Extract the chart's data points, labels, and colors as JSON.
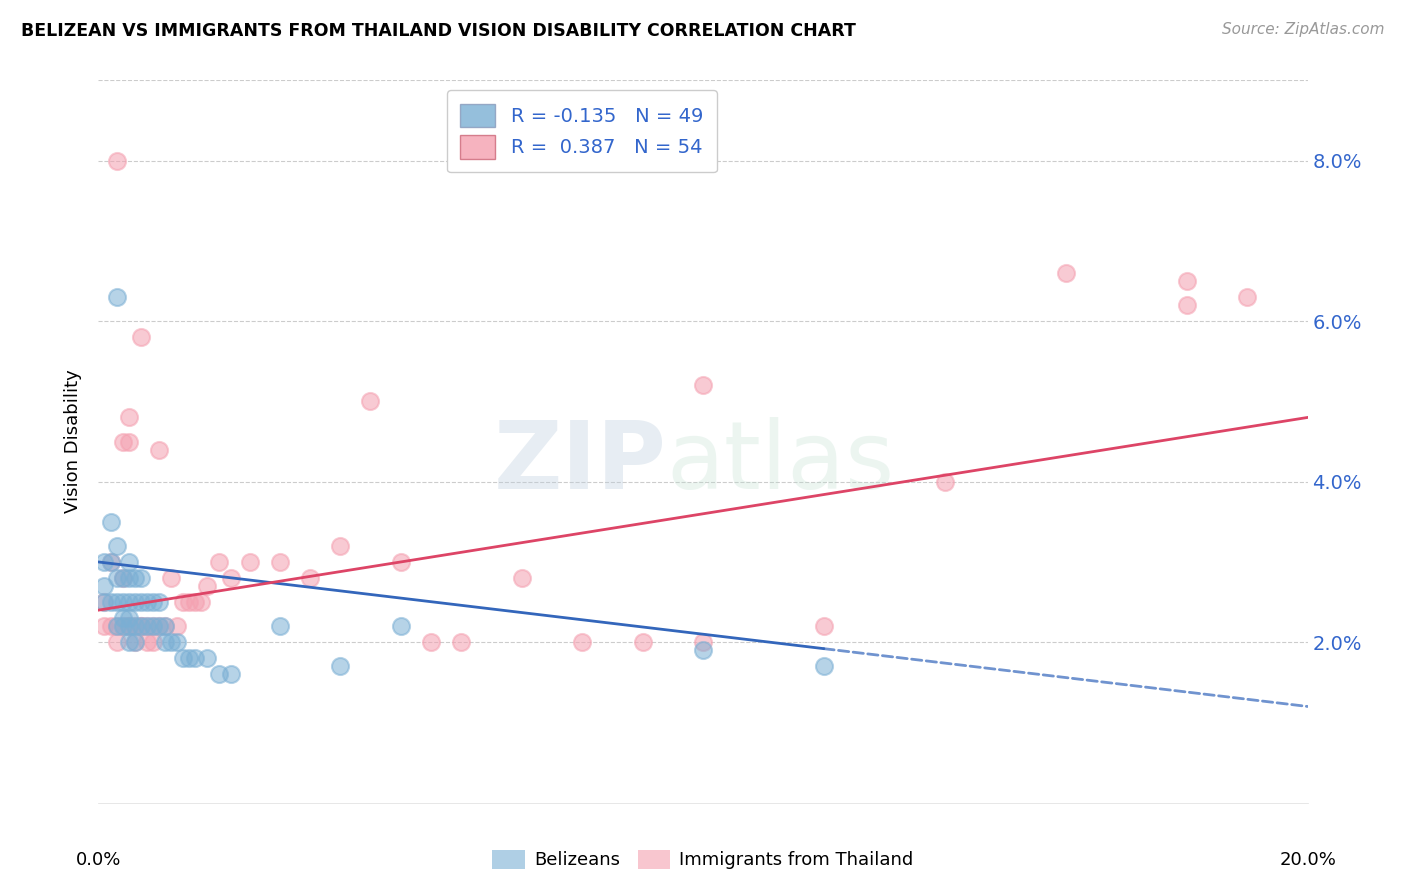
{
  "title": "BELIZEAN VS IMMIGRANTS FROM THAILAND VISION DISABILITY CORRELATION CHART",
  "source": "Source: ZipAtlas.com",
  "ylabel": "Vision Disability",
  "xlim": [
    0.0,
    0.2
  ],
  "ylim": [
    0.0,
    0.09
  ],
  "ytick_values": [
    0.02,
    0.04,
    0.06,
    0.08
  ],
  "ytick_labels": [
    "2.0%",
    "4.0%",
    "6.0%",
    "8.0%"
  ],
  "xtick_labels": [
    "0.0%",
    "20.0%"
  ],
  "belizean_color": "#7BAFD4",
  "thailand_color": "#F4A0B0",
  "trendline_belizean_color": "#3366BB",
  "trendline_thailand_color": "#DD4466",
  "belizean_r": -0.135,
  "belizean_n": 49,
  "thailand_r": 0.387,
  "thailand_n": 54,
  "belizean_x": [
    0.001,
    0.001,
    0.001,
    0.002,
    0.002,
    0.002,
    0.003,
    0.003,
    0.003,
    0.003,
    0.004,
    0.004,
    0.004,
    0.004,
    0.005,
    0.005,
    0.005,
    0.005,
    0.005,
    0.005,
    0.006,
    0.006,
    0.006,
    0.006,
    0.007,
    0.007,
    0.007,
    0.008,
    0.008,
    0.009,
    0.009,
    0.01,
    0.01,
    0.011,
    0.011,
    0.012,
    0.013,
    0.014,
    0.015,
    0.016,
    0.018,
    0.02,
    0.022,
    0.03,
    0.04,
    0.05,
    0.1,
    0.12,
    0.003
  ],
  "belizean_y": [
    0.03,
    0.027,
    0.025,
    0.035,
    0.03,
    0.025,
    0.032,
    0.028,
    0.025,
    0.022,
    0.028,
    0.025,
    0.023,
    0.022,
    0.03,
    0.028,
    0.025,
    0.023,
    0.022,
    0.02,
    0.028,
    0.025,
    0.022,
    0.02,
    0.028,
    0.025,
    0.022,
    0.025,
    0.022,
    0.025,
    0.022,
    0.025,
    0.022,
    0.022,
    0.02,
    0.02,
    0.02,
    0.018,
    0.018,
    0.018,
    0.018,
    0.016,
    0.016,
    0.022,
    0.017,
    0.022,
    0.019,
    0.017,
    0.063
  ],
  "thailand_x": [
    0.001,
    0.001,
    0.002,
    0.002,
    0.003,
    0.003,
    0.004,
    0.004,
    0.004,
    0.005,
    0.005,
    0.005,
    0.006,
    0.006,
    0.007,
    0.007,
    0.008,
    0.008,
    0.009,
    0.009,
    0.01,
    0.01,
    0.011,
    0.012,
    0.013,
    0.014,
    0.015,
    0.016,
    0.017,
    0.018,
    0.02,
    0.022,
    0.025,
    0.03,
    0.035,
    0.04,
    0.045,
    0.05,
    0.055,
    0.06,
    0.07,
    0.08,
    0.09,
    0.1,
    0.12,
    0.14,
    0.16,
    0.18,
    0.19,
    0.003,
    0.005,
    0.007,
    0.18,
    0.1
  ],
  "thailand_y": [
    0.025,
    0.022,
    0.03,
    0.022,
    0.022,
    0.02,
    0.045,
    0.028,
    0.022,
    0.022,
    0.045,
    0.022,
    0.022,
    0.02,
    0.058,
    0.022,
    0.022,
    0.02,
    0.022,
    0.02,
    0.044,
    0.022,
    0.022,
    0.028,
    0.022,
    0.025,
    0.025,
    0.025,
    0.025,
    0.027,
    0.03,
    0.028,
    0.03,
    0.03,
    0.028,
    0.032,
    0.05,
    0.03,
    0.02,
    0.02,
    0.028,
    0.02,
    0.02,
    0.02,
    0.022,
    0.04,
    0.066,
    0.065,
    0.063,
    0.08,
    0.048,
    0.022,
    0.062,
    0.052
  ],
  "trendline_belizean_start_x": 0.0,
  "trendline_belizean_end_x": 0.2,
  "trendline_belizean_start_y": 0.03,
  "trendline_belizean_end_y": 0.012,
  "trendline_belizean_dash_from_x": 0.12,
  "trendline_thailand_start_x": 0.0,
  "trendline_thailand_end_x": 0.2,
  "trendline_thailand_start_y": 0.024,
  "trendline_thailand_end_y": 0.048,
  "background_color": "#FFFFFF",
  "grid_color": "#CCCCCC",
  "axis_label_color": "#3366CC",
  "watermark_zip_color": "#BBCCDD",
  "watermark_atlas_color": "#BBDDCC"
}
